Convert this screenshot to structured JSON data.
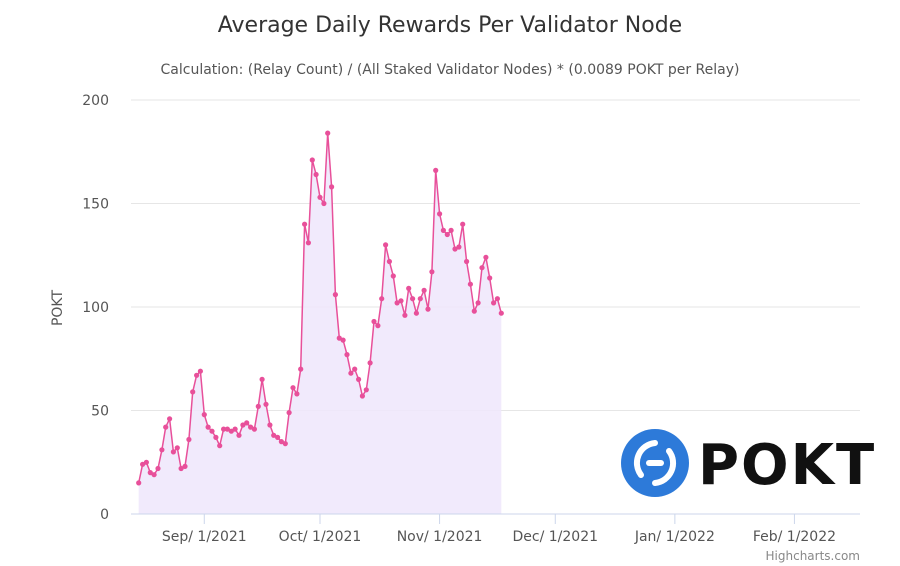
{
  "chart_data": {
    "type": "area",
    "title": "Average Daily Rewards Per Validator Node",
    "subtitle": "Calculation: (Relay Count) / (All Staked Validator Nodes) * (0.0089 POKT per Relay)",
    "xlabel": "",
    "ylabel": "POKT",
    "x_start": "2021-08-15",
    "xlim": [
      "2021-08-13",
      "2022-02-18"
    ],
    "ylim": [
      0,
      200
    ],
    "y_ticks": [
      0,
      50,
      100,
      150,
      200
    ],
    "x_ticks": [
      {
        "date": "2021-09-01",
        "label": "Sep/ 1/2021"
      },
      {
        "date": "2021-10-01",
        "label": "Oct/ 1/2021"
      },
      {
        "date": "2021-11-01",
        "label": "Nov/ 1/2021"
      },
      {
        "date": "2021-12-01",
        "label": "Dec/ 1/2021"
      },
      {
        "date": "2022-01-01",
        "label": "Jan/ 1/2022"
      },
      {
        "date": "2022-02-01",
        "label": "Feb/ 1/2022"
      }
    ],
    "grid": true,
    "legend": "none",
    "series": [
      {
        "name": "",
        "color": "#e8509a",
        "fill_color": "#efe6fb",
        "values": [
          15,
          24,
          25,
          20,
          19,
          22,
          31,
          42,
          46,
          30,
          32,
          22,
          23,
          36,
          59,
          67,
          69,
          48,
          42,
          40,
          37,
          33,
          41,
          41,
          40,
          41,
          38,
          43,
          44,
          42,
          41,
          52,
          65,
          53,
          43,
          38,
          37,
          35,
          34,
          49,
          61,
          58,
          70,
          140,
          131,
          171,
          164,
          153,
          150,
          184,
          158,
          106,
          85,
          84,
          77,
          68,
          70,
          65,
          57,
          60,
          73,
          93,
          91,
          104,
          130,
          122,
          115,
          102,
          103,
          96,
          109,
          104,
          97,
          104,
          108,
          99,
          117,
          166,
          145,
          137,
          135,
          137,
          128,
          129,
          140,
          122,
          111,
          98,
          102,
          119,
          124,
          114,
          102,
          104,
          97
        ]
      }
    ]
  },
  "credits": "Highcharts.com",
  "logo": {
    "text": "POKT",
    "icon": "pokt-logo-icon",
    "color": "#2d7ad9"
  }
}
